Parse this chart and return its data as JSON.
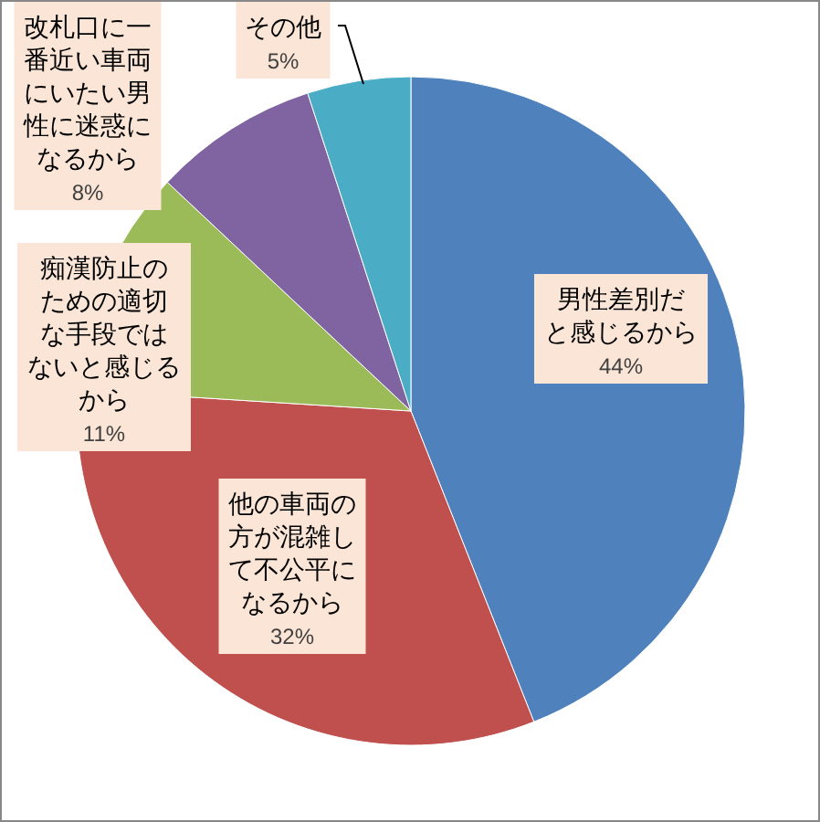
{
  "chart_data": {
    "type": "pie",
    "categories": [
      "男性差別だと感じるから",
      "他の車両の方が混雑して不公平になるから",
      "痴漢防止のための適切な手段ではないと感じるから",
      "改札口に一番近い車両にいたい男性に迷惑になるから",
      "その他"
    ],
    "values": [
      44,
      32,
      11,
      8,
      5
    ],
    "value_labels": [
      "44%",
      "32%",
      "11%",
      "8%",
      "5%"
    ],
    "colors": [
      "#4f81bd",
      "#c0504d",
      "#9bbb59",
      "#8064a2",
      "#4bacc6"
    ]
  }
}
